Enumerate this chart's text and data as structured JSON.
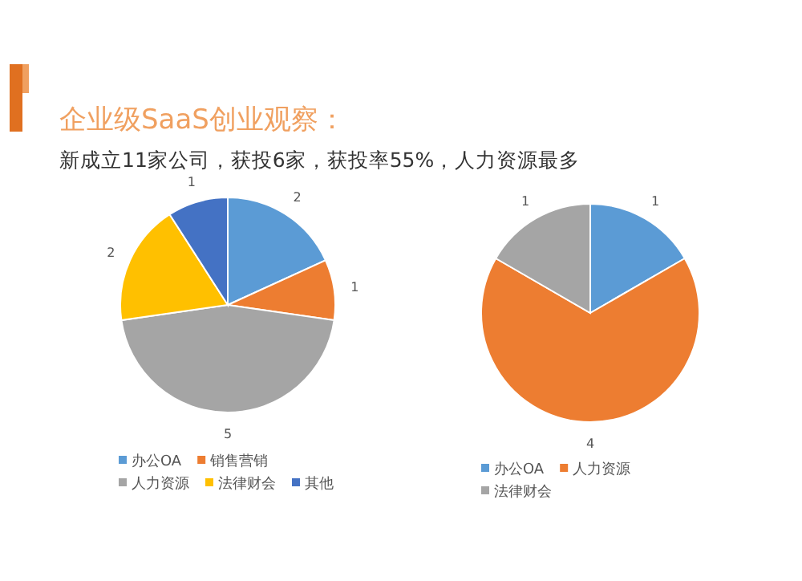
{
  "chart_data": [
    {
      "type": "pie",
      "title": "企业级SaaS创业观察：",
      "subtitle": "新成立11家公司，获投6家，获投率55%，人力资源最多",
      "categories": [
        "办公OA",
        "销售营销",
        "人力资源",
        "法律财会",
        "其他"
      ],
      "values": [
        2,
        1,
        5,
        2,
        1
      ],
      "colors": [
        "#5b9bd5",
        "#ed7d31",
        "#a5a5a5",
        "#ffc000",
        "#4472c4"
      ],
      "data_labels": true,
      "legend": "bottom"
    },
    {
      "type": "pie",
      "categories": [
        "办公OA",
        "人力资源",
        "法律财会"
      ],
      "values": [
        1,
        4,
        1
      ],
      "colors": [
        "#5b9bd5",
        "#ed7d31",
        "#a5a5a5"
      ],
      "data_labels": true,
      "legend": "bottom"
    }
  ]
}
